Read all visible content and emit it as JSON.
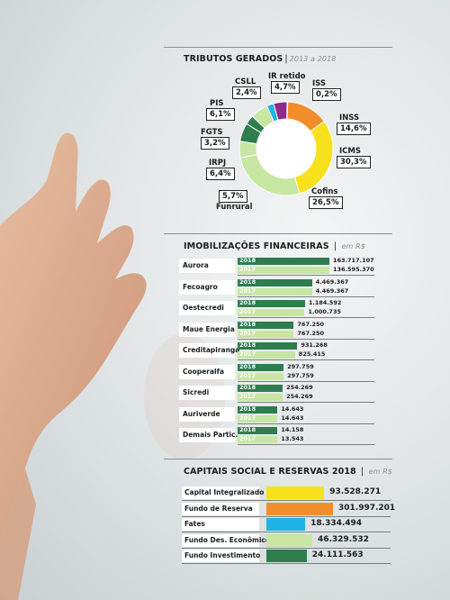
{
  "colors": {
    "dark_green": "#2e7d4f",
    "light_green": "#c6e6a2",
    "yellow": "#f7e11c",
    "orange": "#f28d2c",
    "cyan": "#1fb3e3",
    "purple": "#8e2a8a"
  },
  "tributos": {
    "title": "TRIBUTOS GERADOS",
    "subtitle": "2013 a 2018"
  },
  "investimentos": {
    "title": "IMOBILIZAÇÕES FINANCEIRAS",
    "subtitle": "em R$"
  },
  "capitais": {
    "title": "CAPITAIS SOCIAL E RESERVAS 2018",
    "subtitle": "em R$"
  },
  "chart_data": [
    {
      "type": "pie",
      "title": "TRIBUTOS GERADOS",
      "subtitle": "2013 a 2018",
      "slices": [
        {
          "name": "ISS",
          "value": 0.2,
          "label": "0,2%",
          "color": "#f28d2c"
        },
        {
          "name": "INSS",
          "value": 14.6,
          "label": "14,6%",
          "color": "#f28d2c"
        },
        {
          "name": "ICMS",
          "value": 30.3,
          "label": "30,3%",
          "color": "#f7e11c"
        },
        {
          "name": "Cofins",
          "value": 26.5,
          "label": "26,5%",
          "color": "#c6e6a2"
        },
        {
          "name": "Funrural",
          "value": 5.7,
          "label": "5,7%",
          "color": "#c6e6a2"
        },
        {
          "name": "IRPJ",
          "value": 6.4,
          "label": "6,4%",
          "color": "#2e7d4f"
        },
        {
          "name": "FGTS",
          "value": 3.2,
          "label": "3,2%",
          "color": "#2e7d4f"
        },
        {
          "name": "PIS",
          "value": 6.1,
          "label": "6,1%",
          "color": "#c6e6a2"
        },
        {
          "name": "CSLL",
          "value": 2.4,
          "label": "2,4%",
          "color": "#1fb3e3"
        },
        {
          "name": "IR retido",
          "value": 4.7,
          "label": "4,7%",
          "color": "#8e2a8a"
        }
      ]
    },
    {
      "type": "bar",
      "title": "IMOBILIZAÇÕES FINANCEIRAS",
      "subtitle": "em R$",
      "series_names": [
        "2018",
        "2017"
      ],
      "categories": [
        "Aurora",
        "Fecoagro",
        "Oestecredi",
        "Maue Energia",
        "Creditapiranga",
        "Cooperalfa",
        "Sicredi",
        "Auriverde",
        "Demais Partic."
      ],
      "series": [
        {
          "name": "2018",
          "values": [
            163717107,
            4469367,
            1184592,
            767250,
            931268,
            297759,
            254269,
            14643,
            14158
          ],
          "labels": [
            "163.717.107",
            "4.469.367",
            "1.184.592",
            "767.250",
            "931.268",
            "297.759",
            "254.269",
            "14.643",
            "14.158"
          ]
        },
        {
          "name": "2017",
          "values": [
            136595370,
            4469367,
            1000735,
            767250,
            825415,
            297759,
            254269,
            14643,
            13543
          ],
          "labels": [
            "136.595.370",
            "4.469.367",
            "1.000.735",
            "767.250",
            "825.415",
            "297.759",
            "254.269",
            "14.643",
            "13.543"
          ]
        }
      ]
    },
    {
      "type": "bar",
      "title": "CAPITAIS SOCIAL E RESERVAS 2018",
      "subtitle": "em R$",
      "categories": [
        "Capital Integralizado",
        "Fundo de Reserva",
        "Fates",
        "Fundo Des. Econômico",
        "Fundo Investimento"
      ],
      "values": [
        93528271,
        301997201,
        18334494,
        46329532,
        24111563
      ],
      "labels": [
        "93.528.271",
        "301.997.201",
        "18.334.494",
        "46.329.532",
        "24.111.563"
      ],
      "colors": [
        "#f7e11c",
        "#f28d2c",
        "#1fb3e3",
        "#c6e6a2",
        "#2e7d4f"
      ]
    }
  ]
}
